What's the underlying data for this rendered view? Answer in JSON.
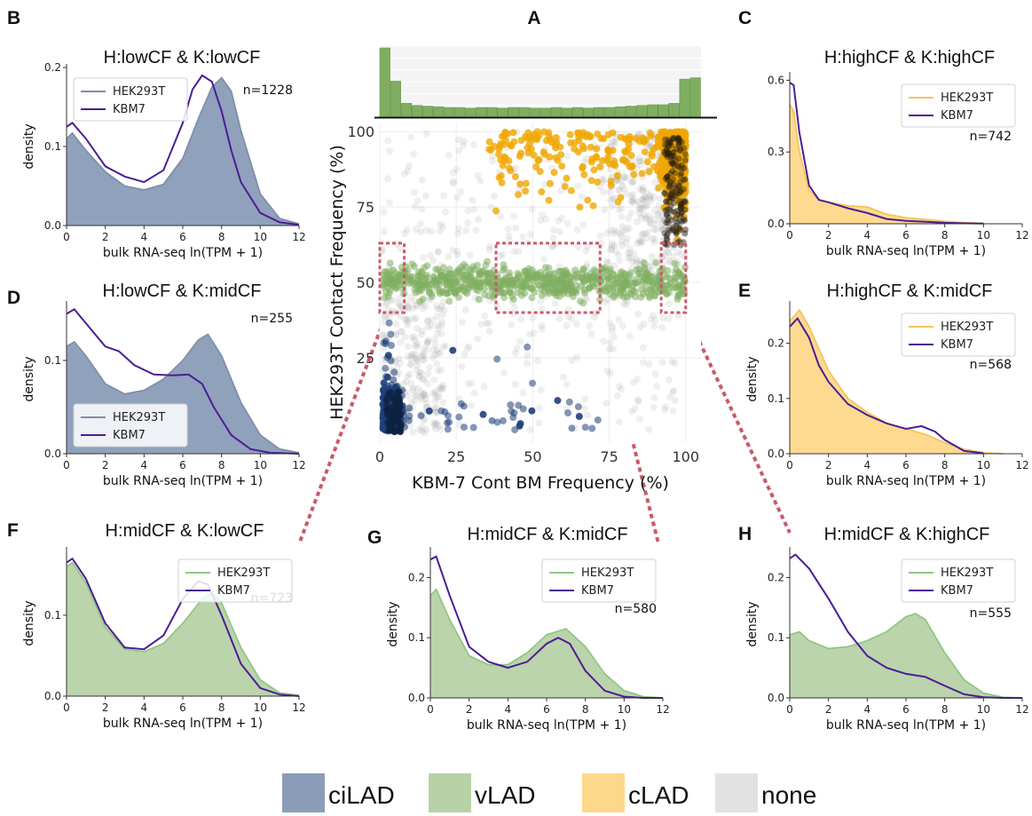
{
  "colors": {
    "ciLAD": "#8a9cb8",
    "vLAD": "#b7d2a6",
    "cLAD": "#fdd88a",
    "none": "#e2e2e2",
    "hek_grey_line": "#7f8fab",
    "hek_green_line": "#90c783",
    "hek_yellow_line": "#f5c55a",
    "kbm7": "#4b1d94",
    "scatter_blue": "#1f3f7a",
    "scatter_green": "#7fae60",
    "scatter_orange": "#f0a800",
    "box_dashed": "#c95a6a",
    "hist_bar": "#7fae60"
  },
  "legend_bottom": [
    {
      "label": "ciLAD",
      "color_key": "ciLAD"
    },
    {
      "label": "vLAD",
      "color_key": "vLAD"
    },
    {
      "label": "cLAD",
      "color_key": "cLAD"
    },
    {
      "label": "none",
      "color_key": "none"
    }
  ],
  "chart_data": [
    {
      "id": "A",
      "letter": "A",
      "type": "scatter",
      "xlabel": "KBM-7 Cont BM Frequency (%)",
      "ylabel": "HEK293T Contact Frequency (%)",
      "xlim": [
        0,
        105
      ],
      "ylim": [
        -3,
        103
      ],
      "xticks": [
        0,
        25,
        50,
        75,
        100
      ],
      "yticks": [
        25,
        50,
        75,
        100
      ],
      "grid": true,
      "groups": [
        "ciLAD",
        "vLAD",
        "cLAD",
        "none"
      ],
      "highlight_boxes_x": [
        [
          0,
          8
        ],
        [
          38,
          72
        ],
        [
          92,
          100
        ]
      ],
      "highlight_boxes_y": [
        40,
        63
      ],
      "marginal_histogram": {
        "bins": 30,
        "relative_heights": [
          1.0,
          0.52,
          0.2,
          0.17,
          0.16,
          0.15,
          0.14,
          0.14,
          0.13,
          0.14,
          0.14,
          0.13,
          0.14,
          0.14,
          0.13,
          0.13,
          0.14,
          0.13,
          0.14,
          0.13,
          0.14,
          0.14,
          0.15,
          0.16,
          0.17,
          0.18,
          0.18,
          0.2,
          0.55,
          0.57
        ]
      }
    },
    {
      "id": "B",
      "letter": "B",
      "type": "area",
      "title": "H:lowCF & K:lowCF",
      "xlabel": "bulk RNA-seq ln(TPM + 1)",
      "ylabel": "density",
      "xlim": [
        0,
        12
      ],
      "ylim": [
        0,
        0.2
      ],
      "xticks": [
        0,
        2,
        4,
        6,
        8,
        10,
        12
      ],
      "yticks": [
        0.0,
        0.1,
        0.2
      ],
      "ytick_labels": [
        "0.0",
        "0.1",
        "0.2"
      ],
      "n_label": "n=1228",
      "legend_pos": "top-left",
      "fill": "ciLAD",
      "series": [
        {
          "name": "HEK293T",
          "x": [
            0,
            0.3,
            1,
            2,
            3,
            4,
            5,
            6,
            6.8,
            7.5,
            8,
            8.5,
            9,
            10,
            11,
            12
          ],
          "y": [
            0.11,
            0.117,
            0.095,
            0.068,
            0.05,
            0.045,
            0.052,
            0.085,
            0.135,
            0.175,
            0.187,
            0.17,
            0.12,
            0.04,
            0.009,
            0.002
          ]
        },
        {
          "name": "KBM7",
          "x": [
            0,
            0.3,
            1,
            2,
            3,
            4,
            5,
            6,
            6.5,
            7,
            7.5,
            8,
            8.5,
            9,
            10,
            11,
            12
          ],
          "y": [
            0.125,
            0.13,
            0.11,
            0.075,
            0.062,
            0.055,
            0.07,
            0.13,
            0.172,
            0.19,
            0.182,
            0.145,
            0.095,
            0.055,
            0.016,
            0.004,
            0.001
          ]
        }
      ]
    },
    {
      "id": "C",
      "letter": "C",
      "type": "area",
      "title": "H:highCF & K:highCF",
      "xlabel": "bulk RNA-seq ln(TPM + 1)",
      "ylabel": "",
      "xlim": [
        0,
        12
      ],
      "ylim": [
        0,
        0.62
      ],
      "xticks": [
        0,
        2,
        4,
        6,
        8,
        10,
        12
      ],
      "yticks": [
        0.0,
        0.3,
        0.6
      ],
      "ytick_labels": [
        "0.0",
        "0.3",
        "0.6"
      ],
      "n_label": "n=742",
      "legend_pos": "top-right",
      "fill": "cLAD",
      "series": [
        {
          "name": "HEK293T",
          "x": [
            0,
            0.2,
            0.5,
            1,
            1.5,
            2,
            3,
            4,
            5,
            6,
            7,
            8,
            9,
            10
          ],
          "y": [
            0.5,
            0.47,
            0.3,
            0.14,
            0.1,
            0.09,
            0.075,
            0.07,
            0.04,
            0.025,
            0.018,
            0.01,
            0.005,
            0.001
          ]
        },
        {
          "name": "KBM7",
          "x": [
            0,
            0.2,
            0.5,
            1,
            1.5,
            2,
            3,
            4,
            5,
            6,
            7,
            8,
            9,
            10
          ],
          "y": [
            0.59,
            0.58,
            0.38,
            0.16,
            0.1,
            0.09,
            0.065,
            0.045,
            0.02,
            0.012,
            0.008,
            0.004,
            0.002,
            0.001
          ]
        }
      ]
    },
    {
      "id": "D",
      "letter": "D",
      "type": "area",
      "title": "H:lowCF & K:midCF",
      "xlabel": "bulk RNA-seq ln(TPM + 1)",
      "ylabel": "density",
      "xlim": [
        0,
        12
      ],
      "ylim": [
        0,
        0.16
      ],
      "xticks": [
        0,
        2,
        4,
        6,
        8,
        10,
        12
      ],
      "yticks": [
        0.0,
        0.1
      ],
      "ytick_labels": [
        "0.0",
        "0.1"
      ],
      "n_label": "n=255",
      "legend_pos": "bottom-left",
      "fill": "ciLAD",
      "series": [
        {
          "name": "HEK293T",
          "x": [
            0,
            0.4,
            1,
            2,
            3,
            4,
            5,
            6,
            6.8,
            7.3,
            8,
            9,
            10,
            11,
            12
          ],
          "y": [
            0.115,
            0.12,
            0.105,
            0.075,
            0.064,
            0.068,
            0.08,
            0.1,
            0.122,
            0.128,
            0.105,
            0.055,
            0.02,
            0.005,
            0.001
          ]
        },
        {
          "name": "KBM7",
          "x": [
            0,
            0.4,
            1,
            2,
            2.7,
            3.5,
            4.5,
            5.5,
            6.3,
            7,
            7.6,
            8.5,
            9.5,
            10.5,
            12
          ],
          "y": [
            0.15,
            0.155,
            0.14,
            0.115,
            0.11,
            0.095,
            0.085,
            0.084,
            0.085,
            0.075,
            0.05,
            0.02,
            0.005,
            0.001,
            0.0
          ]
        }
      ]
    },
    {
      "id": "E",
      "letter": "E",
      "type": "area",
      "title": "H:highCF & K:midCF",
      "xlabel": "bulk RNA-seq ln(TPM + 1)",
      "ylabel": "density",
      "xlim": [
        0,
        12
      ],
      "ylim": [
        0,
        0.27
      ],
      "xticks": [
        0,
        2,
        4,
        6,
        8,
        10,
        12
      ],
      "yticks": [
        0.0,
        0.1,
        0.2
      ],
      "ytick_labels": [
        "0.0",
        "0.1",
        "0.2"
      ],
      "n_label": "n=568",
      "legend_pos": "top-right",
      "fill": "cLAD",
      "series": [
        {
          "name": "HEK293T",
          "x": [
            0,
            0.5,
            1,
            1.5,
            2,
            3,
            4,
            5,
            6,
            7,
            8,
            9,
            10,
            11
          ],
          "y": [
            0.24,
            0.26,
            0.23,
            0.19,
            0.15,
            0.1,
            0.075,
            0.055,
            0.045,
            0.035,
            0.02,
            0.008,
            0.002,
            0.0
          ]
        },
        {
          "name": "KBM7",
          "x": [
            0,
            0.4,
            1,
            1.5,
            2,
            3,
            4,
            5,
            6,
            6.8,
            7.5,
            8,
            9,
            10
          ],
          "y": [
            0.23,
            0.245,
            0.21,
            0.16,
            0.13,
            0.09,
            0.07,
            0.055,
            0.045,
            0.05,
            0.04,
            0.025,
            0.005,
            0.001
          ]
        }
      ]
    },
    {
      "id": "F",
      "letter": "F",
      "type": "area",
      "title": "H:midCF & K:lowCF",
      "xlabel": "bulk RNA-seq ln(TPM + 1)",
      "ylabel": "density",
      "xlim": [
        0,
        12
      ],
      "ylim": [
        0,
        0.18
      ],
      "xticks": [
        0,
        2,
        4,
        6,
        8,
        10,
        12
      ],
      "yticks": [
        0.0,
        0.1
      ],
      "ytick_labels": [
        "0.0",
        "0.1"
      ],
      "n_label": "n=723",
      "legend_pos": "top-right",
      "fill": "vLAD",
      "series": [
        {
          "name": "HEK293T",
          "x": [
            0,
            0.3,
            1,
            2,
            3,
            4,
            5,
            6,
            7,
            7.5,
            8,
            9,
            10,
            11,
            12
          ],
          "y": [
            0.16,
            0.165,
            0.14,
            0.085,
            0.058,
            0.055,
            0.065,
            0.09,
            0.12,
            0.128,
            0.115,
            0.06,
            0.02,
            0.004,
            0.001
          ]
        },
        {
          "name": "KBM7",
          "x": [
            0,
            0.3,
            1,
            2,
            3,
            4,
            5,
            6,
            6.8,
            7.3,
            8,
            9,
            10,
            11,
            12
          ],
          "y": [
            0.165,
            0.17,
            0.145,
            0.09,
            0.06,
            0.058,
            0.075,
            0.12,
            0.142,
            0.138,
            0.1,
            0.04,
            0.01,
            0.002,
            0.0
          ]
        }
      ]
    },
    {
      "id": "G",
      "letter": "G",
      "type": "area",
      "title": "H:midCF & K:midCF",
      "xlabel": "bulk RNA-seq ln(TPM + 1)",
      "ylabel": "density",
      "xlim": [
        0,
        12
      ],
      "ylim": [
        0,
        0.245
      ],
      "xticks": [
        0,
        2,
        4,
        6,
        8,
        10,
        12
      ],
      "yticks": [
        0.0,
        0.1,
        0.2
      ],
      "ytick_labels": [
        "0.0",
        "0.1",
        "0.2"
      ],
      "n_label": "n=580",
      "legend_pos": "top-right",
      "fill": "vLAD",
      "series": [
        {
          "name": "HEK293T",
          "x": [
            0,
            0.3,
            1,
            2,
            3,
            4,
            5,
            6,
            7,
            8,
            9,
            10,
            11,
            12
          ],
          "y": [
            0.17,
            0.18,
            0.13,
            0.07,
            0.055,
            0.055,
            0.075,
            0.105,
            0.115,
            0.085,
            0.04,
            0.012,
            0.002,
            0.0
          ]
        },
        {
          "name": "KBM7",
          "x": [
            0,
            0.3,
            1,
            2,
            3,
            4,
            5,
            6,
            6.6,
            7.2,
            8,
            9,
            10,
            11,
            12
          ],
          "y": [
            0.23,
            0.235,
            0.17,
            0.085,
            0.06,
            0.05,
            0.06,
            0.09,
            0.1,
            0.09,
            0.045,
            0.012,
            0.002,
            0.0,
            0.0
          ]
        }
      ]
    },
    {
      "id": "H",
      "letter": "H",
      "type": "area",
      "title": "H:midCF & K:highCF",
      "xlabel": "bulk RNA-seq ln(TPM + 1)",
      "ylabel": "density",
      "xlim": [
        0,
        12
      ],
      "ylim": [
        0,
        0.245
      ],
      "xticks": [
        0,
        2,
        4,
        6,
        8,
        10,
        12
      ],
      "yticks": [
        0.0,
        0.1,
        0.2
      ],
      "ytick_labels": [
        "0.0",
        "0.1",
        "0.2"
      ],
      "n_label": "n=555",
      "legend_pos": "top-right",
      "fill": "vLAD",
      "series": [
        {
          "name": "HEK293T",
          "x": [
            0,
            0.5,
            1,
            2,
            3,
            4,
            5,
            6,
            6.5,
            7,
            8,
            9,
            10,
            11,
            12
          ],
          "y": [
            0.105,
            0.11,
            0.095,
            0.082,
            0.085,
            0.095,
            0.11,
            0.135,
            0.14,
            0.13,
            0.075,
            0.03,
            0.008,
            0.001,
            0.0
          ]
        },
        {
          "name": "KBM7",
          "x": [
            0,
            0.3,
            1,
            2,
            3,
            4,
            5,
            6,
            7,
            8,
            9,
            10,
            11,
            12
          ],
          "y": [
            0.232,
            0.238,
            0.215,
            0.165,
            0.11,
            0.07,
            0.05,
            0.04,
            0.035,
            0.02,
            0.006,
            0.001,
            0.0,
            0.0
          ]
        }
      ]
    }
  ]
}
